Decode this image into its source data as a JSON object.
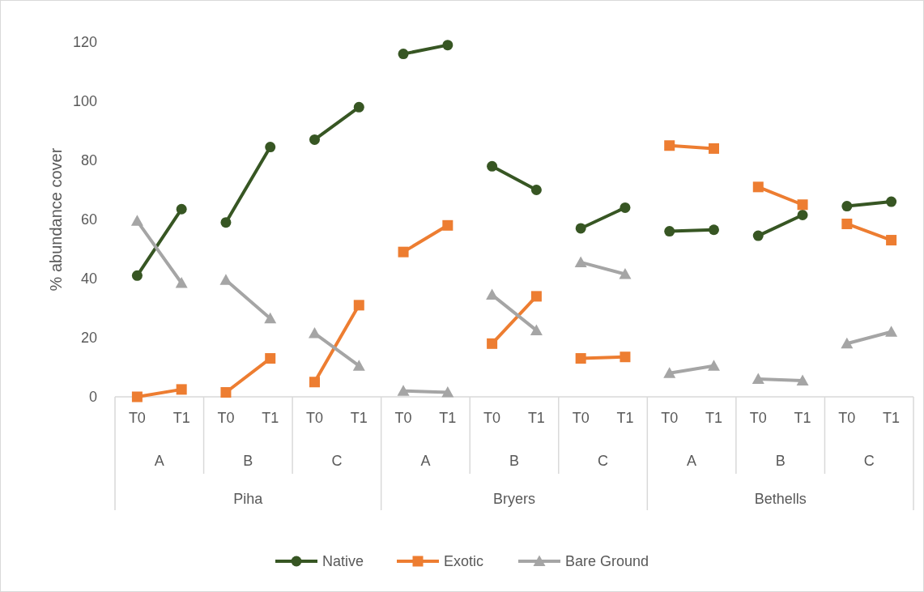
{
  "chart_data": {
    "type": "line",
    "ylabel": "% abundance cover",
    "categories": [
      "T0",
      "T1",
      "T0",
      "T1",
      "T0",
      "T1",
      "T0",
      "T1",
      "T0",
      "T1",
      "T0",
      "T1",
      "T0",
      "T1",
      "T0",
      "T1",
      "T0",
      "T1"
    ],
    "annotations": [
      "A",
      "B",
      "C",
      "A",
      "B",
      "C",
      "A",
      "B",
      "C",
      "Piha",
      "Bryers",
      "Bethells"
    ],
    "series": [
      {
        "name": "Native",
        "color": "#375623",
        "marker": "circle",
        "values": [
          41,
          63.5,
          59,
          84.5,
          87,
          98,
          116,
          119,
          78,
          70,
          57,
          64,
          56,
          56.5,
          54.5,
          61.5,
          64.5,
          66
        ]
      },
      {
        "name": "Exotic",
        "color": "#ed7d31",
        "marker": "square",
        "values": [
          0,
          2.5,
          1.5,
          13,
          5,
          31,
          49,
          58,
          18,
          34,
          13,
          13.5,
          85,
          84,
          71,
          65,
          58.5,
          53
        ]
      },
      {
        "name": "Bare Ground",
        "color": "#a5a5a5",
        "marker": "triangle",
        "values": [
          59.5,
          38.5,
          39.5,
          26.5,
          21.5,
          10.5,
          2,
          1.5,
          34.5,
          22.5,
          45.5,
          41.5,
          8,
          10.5,
          6,
          5.5,
          18,
          22
        ]
      }
    ],
    "ylim": [
      0,
      120
    ],
    "yticks": [
      0,
      20,
      40,
      60,
      80,
      100,
      120
    ],
    "grid": false,
    "legend": "bottom"
  }
}
